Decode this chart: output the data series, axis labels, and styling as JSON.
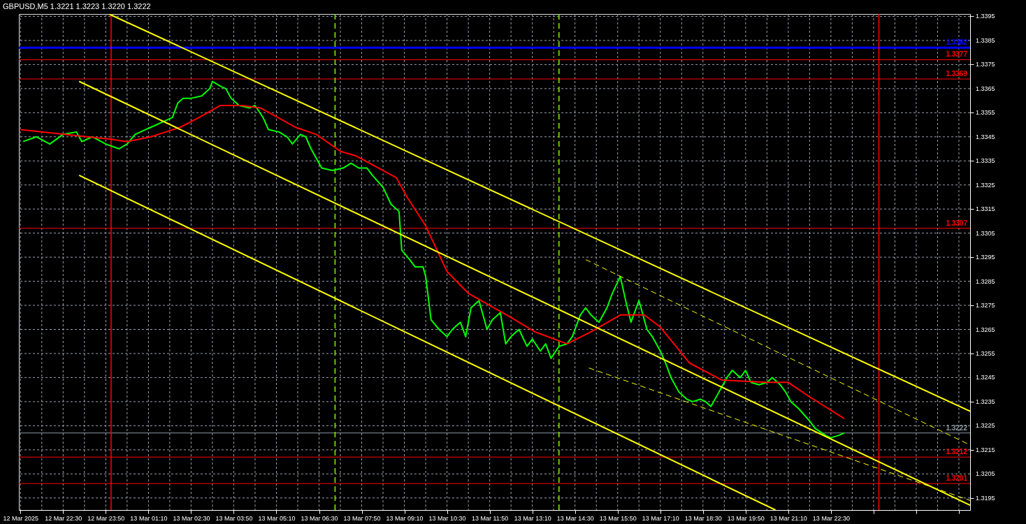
{
  "chart_data": {
    "type": "line",
    "title": "GBPUSD,M5  1.3221 1.3223 1.3220 1.3222",
    "xlim": [
      "2025-03-12T21:07",
      "2025-03-14T02:51"
    ],
    "ylim": [
      1.319,
      1.3396
    ],
    "xticks": [
      {
        "value": "2025-03-12T21:10",
        "label": "12 Mar 2025"
      },
      {
        "value": "2025-03-12T21:50",
        "label": null
      },
      {
        "value": "2025-03-12T22:30",
        "label": "12 Mar 22:30"
      },
      {
        "value": "2025-03-12T23:10",
        "label": null
      },
      {
        "value": "2025-03-12T23:50",
        "label": "12 Mar 23:50"
      },
      {
        "value": "2025-03-13T00:30",
        "label": null
      },
      {
        "value": "2025-03-13T01:10",
        "label": "13 Mar 01:10"
      },
      {
        "value": "2025-03-13T01:50",
        "label": null
      },
      {
        "value": "2025-03-13T02:30",
        "label": "13 Mar 02:30"
      },
      {
        "value": "2025-03-13T03:10",
        "label": null
      },
      {
        "value": "2025-03-13T03:50",
        "label": "13 Mar 03:50"
      },
      {
        "value": "2025-03-13T04:30",
        "label": null
      },
      {
        "value": "2025-03-13T05:10",
        "label": "13 Mar 05:10"
      },
      {
        "value": "2025-03-13T05:50",
        "label": null
      },
      {
        "value": "2025-03-13T06:30",
        "label": "13 Mar 06:30"
      },
      {
        "value": "2025-03-13T07:10",
        "label": null
      },
      {
        "value": "2025-03-13T07:50",
        "label": "13 Mar 07:50"
      },
      {
        "value": "2025-03-13T08:30",
        "label": null
      },
      {
        "value": "2025-03-13T09:10",
        "label": "13 Mar 09:10"
      },
      {
        "value": "2025-03-13T09:50",
        "label": null
      },
      {
        "value": "2025-03-13T10:30",
        "label": "13 Mar 10:30"
      },
      {
        "value": "2025-03-13T11:10",
        "label": null
      },
      {
        "value": "2025-03-13T11:50",
        "label": "13 Mar 11:50"
      },
      {
        "value": "2025-03-13T12:30",
        "label": null
      },
      {
        "value": "2025-03-13T13:10",
        "label": "13 Mar 13:10"
      },
      {
        "value": "2025-03-13T13:50",
        "label": null
      },
      {
        "value": "2025-03-13T14:30",
        "label": "13 Mar 14:30"
      },
      {
        "value": "2025-03-13T15:10",
        "label": null
      },
      {
        "value": "2025-03-13T15:50",
        "label": "13 Mar 15:50"
      },
      {
        "value": "2025-03-13T16:30",
        "label": null
      },
      {
        "value": "2025-03-13T17:10",
        "label": "13 Mar 17:10"
      },
      {
        "value": "2025-03-13T17:50",
        "label": null
      },
      {
        "value": "2025-03-13T18:30",
        "label": "13 Mar 18:30"
      },
      {
        "value": "2025-03-13T19:10",
        "label": null
      },
      {
        "value": "2025-03-13T19:50",
        "label": "13 Mar 19:50"
      },
      {
        "value": "2025-03-13T20:30",
        "label": null
      },
      {
        "value": "2025-03-13T21:10",
        "label": "13 Mar 21:10"
      },
      {
        "value": "2025-03-13T21:50",
        "label": null
      },
      {
        "value": "2025-03-13T22:30",
        "label": "13 Mar 22:30"
      },
      {
        "value": "2025-03-13T23:10",
        "label": null
      },
      {
        "value": "2025-03-13T23:50",
        "label": null
      },
      {
        "value": "2025-03-14T00:30",
        "label": null
      },
      {
        "value": "2025-03-14T01:10",
        "label": null
      },
      {
        "value": "2025-03-14T01:50",
        "label": null
      },
      {
        "value": "2025-03-14T02:30",
        "label": null
      }
    ],
    "yticks": [
      1.3195,
      1.3205,
      1.3215,
      1.3225,
      1.3235,
      1.3245,
      1.3255,
      1.3265,
      1.3275,
      1.3285,
      1.3295,
      1.3305,
      1.3315,
      1.3325,
      1.3335,
      1.3345,
      1.3355,
      1.3365,
      1.3375,
      1.3385,
      1.3395
    ],
    "grid": true,
    "series": [
      {
        "color": "#00ff00",
        "x": [
          "2025-03-12T21:15",
          "2025-03-12T21:40",
          "2025-03-12T22:05",
          "2025-03-12T22:30",
          "2025-03-12T22:55",
          "2025-03-12T23:05",
          "2025-03-12T23:25",
          "2025-03-12T23:50",
          "2025-03-13T00:15",
          "2025-03-13T00:30",
          "2025-03-13T00:45",
          "2025-03-13T01:05",
          "2025-03-13T01:15",
          "2025-03-13T01:35",
          "2025-03-13T01:55",
          "2025-03-13T02:05",
          "2025-03-13T02:15",
          "2025-03-13T02:30",
          "2025-03-13T02:50",
          "2025-03-13T03:05",
          "2025-03-13T03:10",
          "2025-03-13T03:25",
          "2025-03-13T03:35",
          "2025-03-13T03:45",
          "2025-03-13T04:00",
          "2025-03-13T04:20",
          "2025-03-13T04:30",
          "2025-03-13T04:45",
          "2025-03-13T04:55",
          "2025-03-13T05:15",
          "2025-03-13T05:30",
          "2025-03-13T05:40",
          "2025-03-13T05:55",
          "2025-03-13T06:05",
          "2025-03-13T06:15",
          "2025-03-13T06:35",
          "2025-03-13T06:55",
          "2025-03-13T07:15",
          "2025-03-13T07:30",
          "2025-03-13T07:45",
          "2025-03-13T08:00",
          "2025-03-13T08:10",
          "2025-03-13T08:30",
          "2025-03-13T08:45",
          "2025-03-13T09:00",
          "2025-03-13T09:05",
          "2025-03-13T09:20",
          "2025-03-13T09:30",
          "2025-03-13T09:45",
          "2025-03-13T09:50",
          "2025-03-13T10:00",
          "2025-03-13T10:15",
          "2025-03-13T10:30",
          "2025-03-13T10:40",
          "2025-03-13T10:55",
          "2025-03-13T11:05",
          "2025-03-13T11:15",
          "2025-03-13T11:30",
          "2025-03-13T11:45",
          "2025-03-13T11:55",
          "2025-03-13T12:10",
          "2025-03-13T12:20",
          "2025-03-13T12:30",
          "2025-03-13T12:45",
          "2025-03-13T13:00",
          "2025-03-13T13:10",
          "2025-03-13T13:25",
          "2025-03-13T13:35",
          "2025-03-13T13:45",
          "2025-03-13T14:00",
          "2025-03-13T14:15",
          "2025-03-13T14:25",
          "2025-03-13T14:40",
          "2025-03-13T14:50",
          "2025-03-13T15:00",
          "2025-03-13T15:15",
          "2025-03-13T15:30",
          "2025-03-13T15:40",
          "2025-03-13T15:55",
          "2025-03-13T16:05",
          "2025-03-13T16:15",
          "2025-03-13T16:30",
          "2025-03-13T16:45",
          "2025-03-13T16:55",
          "2025-03-13T17:10",
          "2025-03-13T17:20",
          "2025-03-13T17:30",
          "2025-03-13T17:45",
          "2025-03-13T18:00",
          "2025-03-13T18:10",
          "2025-03-13T18:25",
          "2025-03-13T18:35",
          "2025-03-13T18:45",
          "2025-03-13T19:00",
          "2025-03-13T19:15",
          "2025-03-13T19:25",
          "2025-03-13T19:40",
          "2025-03-13T19:50",
          "2025-03-13T20:00",
          "2025-03-13T20:15",
          "2025-03-13T20:30",
          "2025-03-13T20:40",
          "2025-03-13T20:55",
          "2025-03-13T21:05",
          "2025-03-13T21:15",
          "2025-03-13T21:30",
          "2025-03-13T21:50",
          "2025-03-13T22:00",
          "2025-03-13T22:20",
          "2025-03-13T22:30",
          "2025-03-13T22:45",
          "2025-03-13T22:55"
        ],
        "values": [
          1.3343,
          1.3345,
          1.3342,
          1.3346,
          1.3347,
          1.3343,
          1.3345,
          1.3342,
          1.334,
          1.3342,
          1.3346,
          1.3348,
          1.3349,
          1.3351,
          1.3353,
          1.3359,
          1.3361,
          1.3361,
          1.3362,
          1.3365,
          1.3368,
          1.3366,
          1.3365,
          1.3361,
          1.3358,
          1.3357,
          1.3358,
          1.3353,
          1.3348,
          1.3347,
          1.3345,
          1.3342,
          1.3346,
          1.3345,
          1.334,
          1.3332,
          1.3331,
          1.3332,
          1.3334,
          1.3332,
          1.3332,
          1.3329,
          1.3324,
          1.3317,
          1.3314,
          1.3298,
          1.3294,
          1.3291,
          1.3291,
          1.3287,
          1.3269,
          1.3265,
          1.3262,
          1.3265,
          1.3268,
          1.3262,
          1.3274,
          1.3277,
          1.3265,
          1.3269,
          1.3272,
          1.3259,
          1.3262,
          1.3265,
          1.3258,
          1.3261,
          1.3256,
          1.3259,
          1.3253,
          1.3258,
          1.3259,
          1.3262,
          1.3271,
          1.3274,
          1.3271,
          1.3268,
          1.3274,
          1.328,
          1.3287,
          1.3277,
          1.3268,
          1.3277,
          1.3265,
          1.3262,
          1.3256,
          1.3251,
          1.3245,
          1.3239,
          1.3236,
          1.3235,
          1.3236,
          1.3235,
          1.3233,
          1.3239,
          1.3245,
          1.3248,
          1.3245,
          1.3248,
          1.3243,
          1.3242,
          1.3243,
          1.3245,
          1.3242,
          1.3239,
          1.3235,
          1.3232,
          1.3227,
          1.3224,
          1.3221,
          1.322,
          1.3221,
          1.3222
        ]
      },
      {
        "color": "#ff0000",
        "x": [
          "2025-03-12T21:10",
          "2025-03-12T23:15",
          "2025-03-13T00:00",
          "2025-03-13T00:30",
          "2025-03-13T01:15",
          "2025-03-13T02:10",
          "2025-03-13T02:45",
          "2025-03-13T03:25",
          "2025-03-13T04:05",
          "2025-03-13T04:40",
          "2025-03-13T05:05",
          "2025-03-13T05:45",
          "2025-03-13T06:25",
          "2025-03-13T07:10",
          "2025-03-13T07:40",
          "2025-03-13T08:55",
          "2025-03-13T09:15",
          "2025-03-13T09:50",
          "2025-03-13T10:30",
          "2025-03-13T11:10",
          "2025-03-13T11:50",
          "2025-03-13T12:30",
          "2025-03-13T13:15",
          "2025-03-13T14:15",
          "2025-03-13T15:00",
          "2025-03-13T15:55",
          "2025-03-13T16:40",
          "2025-03-13T17:10",
          "2025-03-13T18:05",
          "2025-03-13T19:05",
          "2025-03-13T20:30",
          "2025-03-13T21:10",
          "2025-03-13T21:50",
          "2025-03-13T22:55"
        ],
        "values": [
          1.3348,
          1.3345,
          1.3344,
          1.3343,
          1.3345,
          1.3349,
          1.3353,
          1.3358,
          1.3358,
          1.3357,
          1.3354,
          1.3349,
          1.3346,
          1.3339,
          1.3337,
          1.3328,
          1.332,
          1.3308,
          1.3289,
          1.328,
          1.3275,
          1.327,
          1.3264,
          1.3259,
          1.3264,
          1.3271,
          1.3271,
          1.3266,
          1.3251,
          1.3244,
          1.3243,
          1.3243,
          1.3237,
          1.3228
        ]
      },
      {
        "color": "#ffff00",
        "x": [
          "2025-03-12T23:56",
          "2025-03-14T02:51"
        ],
        "values": [
          1.3396,
          1.3231
        ]
      },
      {
        "color": "#ffff00",
        "x": [
          "2025-03-12T23:00",
          "2025-03-14T02:51"
        ],
        "values": [
          1.3368,
          1.3192
        ]
      },
      {
        "color": "#ffff00",
        "x": [
          "2025-03-12T23:00",
          "2025-03-13T20:46"
        ],
        "values": [
          1.3329,
          1.319
        ]
      },
      {
        "color": "#ffff00",
        "line_style": "dashed",
        "x": [
          "2025-03-13T14:50",
          "2025-03-14T02:51"
        ],
        "values": [
          1.3294,
          1.3217
        ]
      },
      {
        "color": "#ffff00",
        "line_style": "dashed",
        "x": [
          "2025-03-13T14:56",
          "2025-03-14T02:51"
        ],
        "values": [
          1.3249,
          1.3194
        ]
      }
    ],
    "ref_lines": [
      {
        "axis": "y",
        "value": 1.3382,
        "label": "1.3382",
        "color": "#0000ff"
      },
      {
        "axis": "y",
        "value": 1.3377,
        "label": "1.3377",
        "color": "#ff0000"
      },
      {
        "axis": "y",
        "value": 1.3369,
        "label": "1.3369",
        "color": "#ff0000"
      },
      {
        "axis": "y",
        "value": 1.3307,
        "label": "1.3307",
        "color": "#ff0000"
      },
      {
        "axis": "y",
        "value": 1.3222,
        "label": "1.3222",
        "color": "#8c9aa6"
      },
      {
        "axis": "y",
        "value": 1.3212,
        "label": "1.3212",
        "color": "#ff0000"
      },
      {
        "axis": "y",
        "value": 1.3201,
        "label": "1.3201",
        "color": "#ff0000"
      },
      {
        "axis": "x",
        "value": "2025-03-13T00:00",
        "label": null,
        "color": "#ff0000"
      },
      {
        "axis": "x",
        "value": "2025-03-14T00:00",
        "label": null,
        "color": "#ff0000"
      },
      {
        "axis": "x",
        "value": "2025-03-13T07:00",
        "label": null,
        "color": "#7cfc00",
        "line_style": "dashed"
      },
      {
        "axis": "x",
        "value": "2025-03-13T14:00",
        "label": null,
        "color": "#7cfc00",
        "line_style": "dashed"
      }
    ]
  }
}
